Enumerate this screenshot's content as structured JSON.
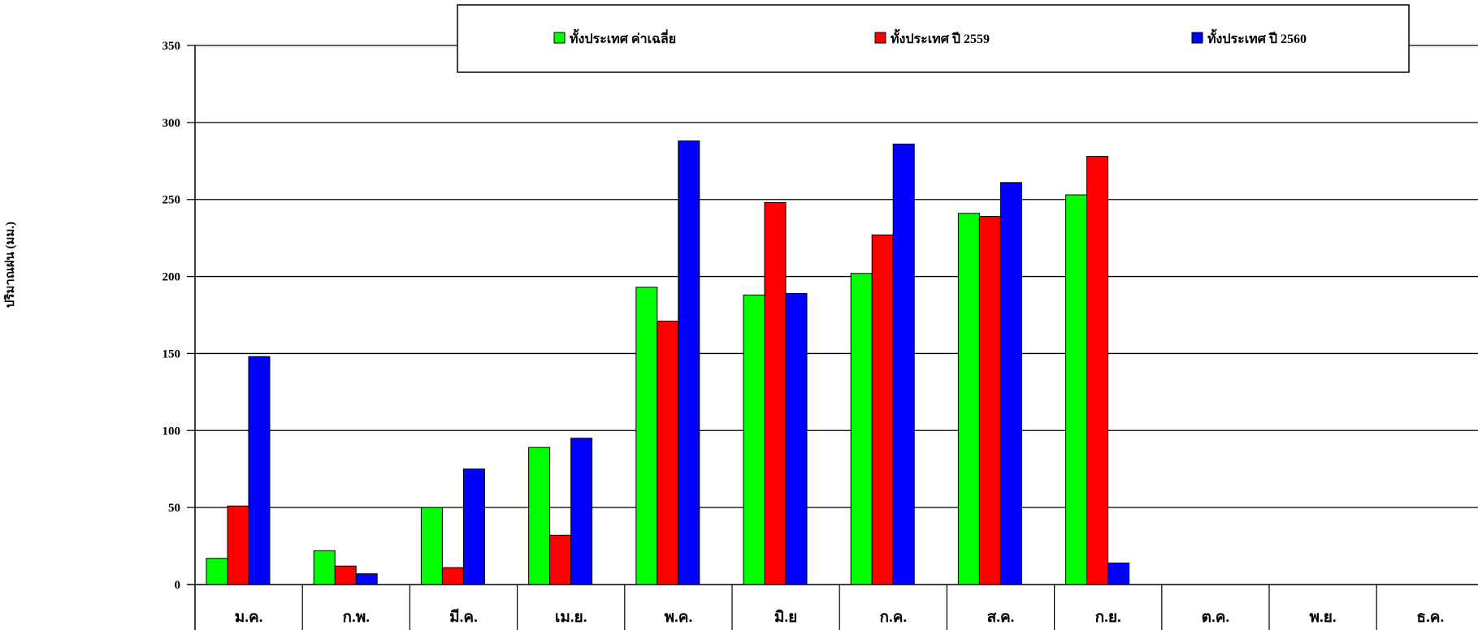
{
  "chart_data": {
    "type": "bar",
    "title": "",
    "xlabel": "",
    "ylabel": "ปริมาณฝน (มม.)",
    "ylim": [
      0,
      350
    ],
    "yticks": [
      "0",
      "50",
      "100",
      "150",
      "200",
      "250",
      "300",
      "350"
    ],
    "grid": true,
    "legend_position": "top",
    "categories": [
      "ม.ค.",
      "ก.พ.",
      "มี.ค.",
      "เม.ย.",
      "พ.ค.",
      "มิ.ย",
      "ก.ค.",
      "ส.ค.",
      "ก.ย.",
      "ต.ค.",
      "พ.ย.",
      "ธ.ค."
    ],
    "series": [
      {
        "name": "ทั้งประเทศ ค่าเฉลี่ย",
        "color": "#00ff00",
        "values": [
          17,
          22,
          50,
          89,
          193,
          188,
          202,
          241,
          253,
          null,
          null,
          null
        ]
      },
      {
        "name": "ทั้งประเทศ ปี 2559",
        "color": "#ff0000",
        "values": [
          51,
          12,
          11,
          32,
          171,
          248,
          227,
          239,
          278,
          null,
          null,
          null
        ]
      },
      {
        "name": "ทั้งประเทศ ปี 2560",
        "color": "#0000ff",
        "values": [
          148,
          7,
          75,
          95,
          288,
          189,
          286,
          261,
          14,
          null,
          null,
          null
        ]
      }
    ]
  }
}
